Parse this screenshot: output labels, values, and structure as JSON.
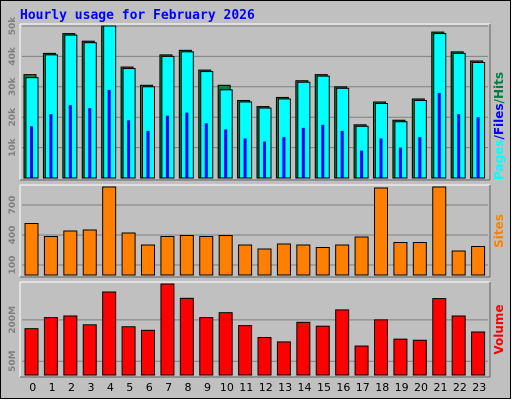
{
  "title": "Hourly usage for February 2026",
  "colors": {
    "background": "#c0c0c0",
    "title": "#0000ff",
    "hits": "#008040",
    "files": "#00ffff",
    "pages": "#0000ff",
    "sites": "#ff8000",
    "volume": "#ff0000",
    "grid": "#808080"
  },
  "chart_data": [
    {
      "type": "bar",
      "panel": "hits-files-pages",
      "categories": [
        "0",
        "1",
        "2",
        "3",
        "4",
        "5",
        "6",
        "7",
        "8",
        "9",
        "10",
        "11",
        "12",
        "13",
        "14",
        "15",
        "16",
        "17",
        "18",
        "19",
        "20",
        "21",
        "22",
        "23"
      ],
      "ylim": [
        0,
        50000
      ],
      "yticks": [
        "10k",
        "20k",
        "30k",
        "40k",
        "50k"
      ],
      "ytick_values": [
        10000,
        20000,
        30000,
        40000,
        50000
      ],
      "series_label": {
        "pages": "Pages",
        "sep1": "/",
        "files": "Files",
        "sep2": "/",
        "hits": "Hits"
      },
      "series": [
        {
          "name": "Hits",
          "values": [
            34000,
            41000,
            47500,
            45000,
            50500,
            36500,
            30500,
            40500,
            42000,
            35500,
            30500,
            25500,
            23500,
            26500,
            32000,
            34000,
            30000,
            17500,
            25000,
            19000,
            26000,
            48000,
            41500,
            38500
          ]
        },
        {
          "name": "Files",
          "values": [
            33000,
            40500,
            47000,
            44500,
            50000,
            36000,
            30000,
            40000,
            41500,
            35000,
            29000,
            25000,
            23000,
            26000,
            31500,
            33500,
            29500,
            17000,
            24500,
            18500,
            25500,
            47500,
            41000,
            38000
          ]
        },
        {
          "name": "Pages",
          "values": [
            17000,
            21000,
            24000,
            23000,
            29000,
            19000,
            15500,
            20500,
            21500,
            18000,
            16000,
            13000,
            12000,
            13500,
            16500,
            17500,
            15500,
            9000,
            13000,
            10000,
            13500,
            28000,
            21000,
            20000
          ]
        }
      ]
    },
    {
      "type": "bar",
      "panel": "sites",
      "categories": [
        "0",
        "1",
        "2",
        "3",
        "4",
        "5",
        "6",
        "7",
        "8",
        "9",
        "10",
        "11",
        "12",
        "13",
        "14",
        "15",
        "16",
        "17",
        "18",
        "19",
        "20",
        "21",
        "22",
        "23"
      ],
      "ylim": [
        0,
        880
      ],
      "yticks": [
        "100",
        "400",
        "700"
      ],
      "ytick_values": [
        100,
        400,
        700
      ],
      "series_label": "Sites",
      "series": [
        {
          "name": "Sites",
          "values": [
            515,
            385,
            440,
            450,
            1025,
            420,
            300,
            385,
            395,
            385,
            395,
            300,
            260,
            310,
            300,
            275,
            300,
            380,
            870,
            325,
            325,
            1005,
            240,
            285
          ]
        }
      ]
    },
    {
      "type": "bar",
      "panel": "volume",
      "categories": [
        "0",
        "1",
        "2",
        "3",
        "4",
        "5",
        "6",
        "7",
        "8",
        "9",
        "10",
        "11",
        "12",
        "13",
        "14",
        "15",
        "16",
        "17",
        "18",
        "19",
        "20",
        "21",
        "22",
        "23"
      ],
      "ylim": [
        0,
        330
      ],
      "yticks": [
        "50M",
        "200M"
      ],
      "ytick_values": [
        50,
        200
      ],
      "series_label": "Volume",
      "series": [
        {
          "name": "Volume",
          "values": [
            168,
            208,
            214,
            182,
            301,
            175,
            162,
            335,
            278,
            208,
            226,
            179,
            136,
            120,
            191,
            177,
            236,
            105,
            200,
            130,
            126,
            277,
            214,
            156
          ]
        }
      ]
    }
  ]
}
